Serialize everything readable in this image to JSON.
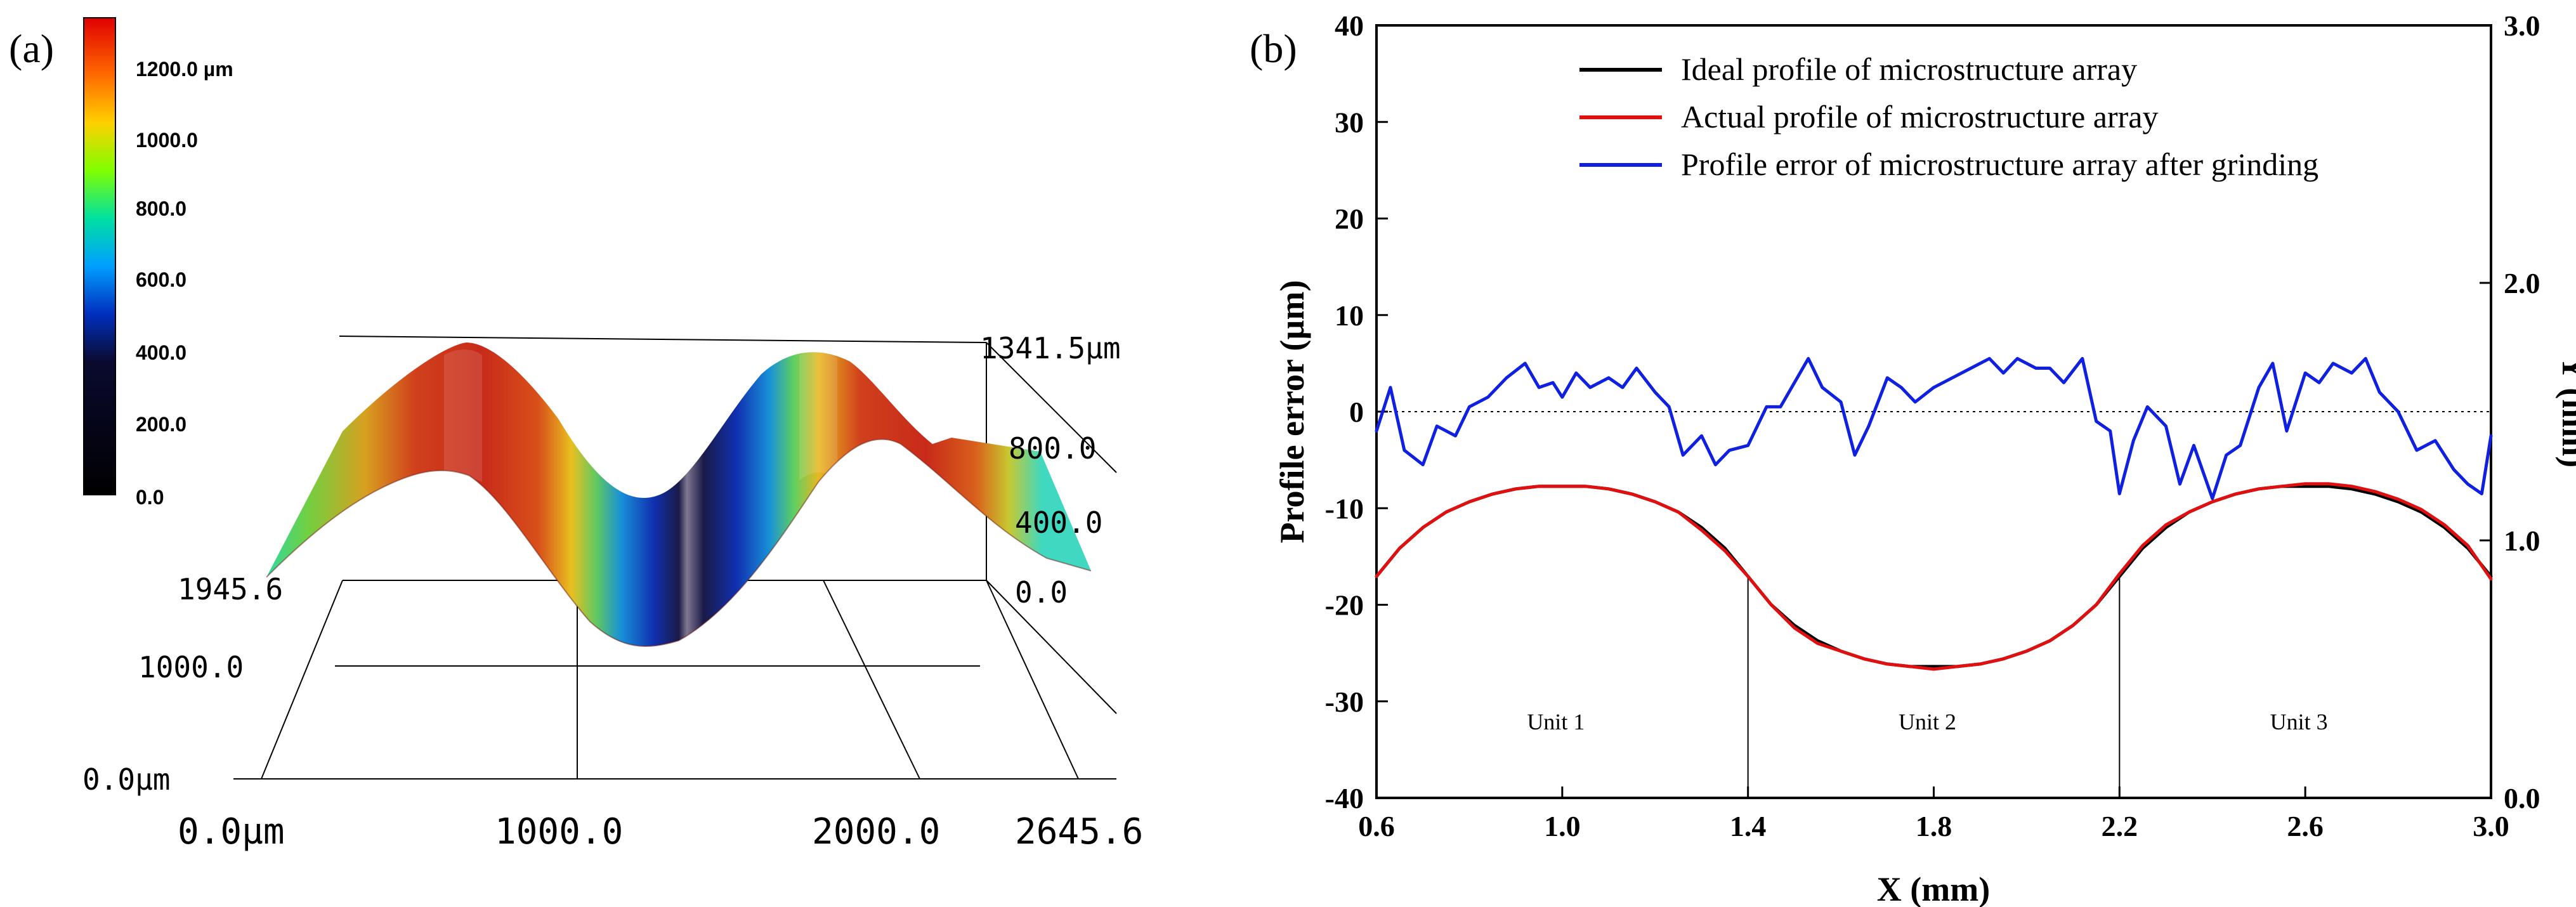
{
  "panel_a": {
    "label": "(a)",
    "colorbar": {
      "ticks": [
        "1200.0 µm",
        "1000.0",
        "800.0",
        "600.0",
        "400.0",
        "200.0",
        "0.0"
      ],
      "stops": [
        "#e00000",
        "#ff8000",
        "#ffd000",
        "#80ff00",
        "#00e0a0",
        "#00a0ff",
        "#0040d0",
        "#001040",
        "#101010",
        "#000000"
      ]
    },
    "z_axis": {
      "ticks": [
        "1341.5µm",
        "800.0",
        "400.0",
        "0.0"
      ]
    },
    "y_axis": {
      "ticks": [
        "1945.6",
        "1000.0",
        "0.0µm"
      ]
    },
    "x_axis": {
      "ticks": [
        "0.0µm",
        "1000.0",
        "2000.0",
        "2645.6"
      ]
    },
    "surface_colors": {
      "peak": "#c8281e",
      "mid": "#e8c020",
      "cyan": "#20d0a0",
      "valley": "#1838b0",
      "floor": "#252040",
      "edge": "#40d8c0"
    }
  },
  "chart_data": [
    {
      "type": "line",
      "panel": "(b)",
      "xlabel": "X (mm)",
      "ylabel_left": "Profile error (µm)",
      "ylabel_right": "Y (mm)",
      "xlim": [
        0.6,
        3.0
      ],
      "ylim_left": [
        -40,
        40
      ],
      "ylim_right": [
        0.0,
        3.0
      ],
      "x_ticks": [
        "0.6",
        "1.0",
        "1.4",
        "1.8",
        "2.2",
        "2.6",
        "3.0"
      ],
      "y_left_ticks": [
        "40",
        "30",
        "20",
        "10",
        "0",
        "-10",
        "-20",
        "-30",
        "-40"
      ],
      "y_right_ticks": [
        "3.0",
        "2.0",
        "1.0",
        "0.0"
      ],
      "zero_line": 0,
      "unit_dividers": [
        1.4,
        2.2
      ],
      "unit_labels": [
        {
          "text": "Unit 1",
          "x": 1.0
        },
        {
          "text": "Unit 2",
          "x": 1.8
        },
        {
          "text": "Unit 3",
          "x": 2.6
        }
      ],
      "legend": [
        "Ideal profile of microstructure array",
        "Actual profile of microstructure array",
        "Profile error of microstructure array after grinding"
      ],
      "legend_position": "top",
      "series": [
        {
          "name": "Ideal profile of microstructure array",
          "axis": "right",
          "color": "#000000",
          "x": [
            0.6,
            0.65,
            0.7,
            0.75,
            0.8,
            0.85,
            0.9,
            0.95,
            1.0,
            1.05,
            1.1,
            1.15,
            1.2,
            1.25,
            1.3,
            1.35,
            1.4,
            1.45,
            1.5,
            1.55,
            1.6,
            1.65,
            1.7,
            1.75,
            1.8,
            1.85,
            1.9,
            1.95,
            2.0,
            2.05,
            2.1,
            2.15,
            2.2,
            2.25,
            2.3,
            2.35,
            2.4,
            2.45,
            2.5,
            2.55,
            2.6,
            2.65,
            2.7,
            2.75,
            2.8,
            2.85,
            2.9,
            2.95,
            3.0
          ],
          "y": [
            0.86,
            0.97,
            1.05,
            1.11,
            1.15,
            1.18,
            1.2,
            1.21,
            1.21,
            1.21,
            1.2,
            1.18,
            1.15,
            1.11,
            1.05,
            0.97,
            0.86,
            0.75,
            0.67,
            0.61,
            0.57,
            0.54,
            0.52,
            0.51,
            0.51,
            0.51,
            0.52,
            0.54,
            0.57,
            0.61,
            0.67,
            0.75,
            0.86,
            0.97,
            1.05,
            1.11,
            1.15,
            1.18,
            1.2,
            1.21,
            1.21,
            1.21,
            1.2,
            1.18,
            1.15,
            1.11,
            1.05,
            0.97,
            0.86
          ]
        },
        {
          "name": "Actual profile of microstructure array",
          "axis": "right",
          "color": "#e01010",
          "x": [
            0.6,
            0.65,
            0.7,
            0.75,
            0.8,
            0.85,
            0.9,
            0.95,
            1.0,
            1.05,
            1.1,
            1.15,
            1.2,
            1.25,
            1.3,
            1.35,
            1.4,
            1.45,
            1.5,
            1.55,
            1.6,
            1.65,
            1.7,
            1.75,
            1.8,
            1.85,
            1.9,
            1.95,
            2.0,
            2.05,
            2.1,
            2.15,
            2.2,
            2.25,
            2.3,
            2.35,
            2.4,
            2.45,
            2.5,
            2.55,
            2.6,
            2.65,
            2.7,
            2.75,
            2.8,
            2.85,
            2.9,
            2.95,
            3.0
          ],
          "y": [
            0.86,
            0.97,
            1.05,
            1.11,
            1.15,
            1.18,
            1.2,
            1.21,
            1.21,
            1.21,
            1.2,
            1.18,
            1.15,
            1.11,
            1.04,
            0.96,
            0.86,
            0.75,
            0.66,
            0.6,
            0.57,
            0.54,
            0.52,
            0.51,
            0.5,
            0.51,
            0.52,
            0.54,
            0.57,
            0.61,
            0.67,
            0.75,
            0.87,
            0.98,
            1.06,
            1.11,
            1.15,
            1.18,
            1.2,
            1.21,
            1.22,
            1.22,
            1.21,
            1.19,
            1.16,
            1.12,
            1.06,
            0.98,
            0.85
          ]
        },
        {
          "name": "Profile error of microstructure array after grinding",
          "axis": "left",
          "color": "#1020e0",
          "x": [
            0.6,
            0.63,
            0.66,
            0.7,
            0.73,
            0.77,
            0.8,
            0.84,
            0.88,
            0.92,
            0.95,
            0.98,
            1.0,
            1.03,
            1.06,
            1.1,
            1.13,
            1.16,
            1.2,
            1.23,
            1.26,
            1.3,
            1.33,
            1.36,
            1.4,
            1.44,
            1.47,
            1.5,
            1.53,
            1.56,
            1.6,
            1.63,
            1.66,
            1.7,
            1.73,
            1.76,
            1.8,
            1.84,
            1.88,
            1.92,
            1.95,
            1.98,
            2.02,
            2.05,
            2.08,
            2.12,
            2.15,
            2.18,
            2.2,
            2.23,
            2.26,
            2.3,
            2.33,
            2.36,
            2.4,
            2.43,
            2.46,
            2.5,
            2.53,
            2.56,
            2.6,
            2.63,
            2.66,
            2.7,
            2.73,
            2.76,
            2.8,
            2.84,
            2.88,
            2.92,
            2.95,
            2.98,
            3.0
          ],
          "y": [
            -2,
            2.5,
            -4,
            -5.5,
            -1.5,
            -2.5,
            0.5,
            1.5,
            3.5,
            5,
            2.5,
            3,
            1.5,
            4,
            2.5,
            3.5,
            2.5,
            4.5,
            2,
            0.5,
            -4.5,
            -2.5,
            -5.5,
            -4,
            -3.5,
            0.5,
            0.5,
            3,
            5.5,
            2.5,
            1,
            -4.5,
            -1.5,
            3.5,
            2.5,
            1,
            2.5,
            3.5,
            4.5,
            5.5,
            4,
            5.5,
            4.5,
            4.5,
            3,
            5.5,
            -1,
            -2,
            -8.5,
            -3,
            0.5,
            -1.5,
            -7.5,
            -3.5,
            -9,
            -4.5,
            -3.5,
            2.5,
            5,
            -2,
            4,
            3,
            5,
            4,
            5.5,
            2,
            0,
            -4,
            -3,
            -6,
            -7.5,
            -8.5,
            -2.5
          ]
        }
      ]
    }
  ]
}
